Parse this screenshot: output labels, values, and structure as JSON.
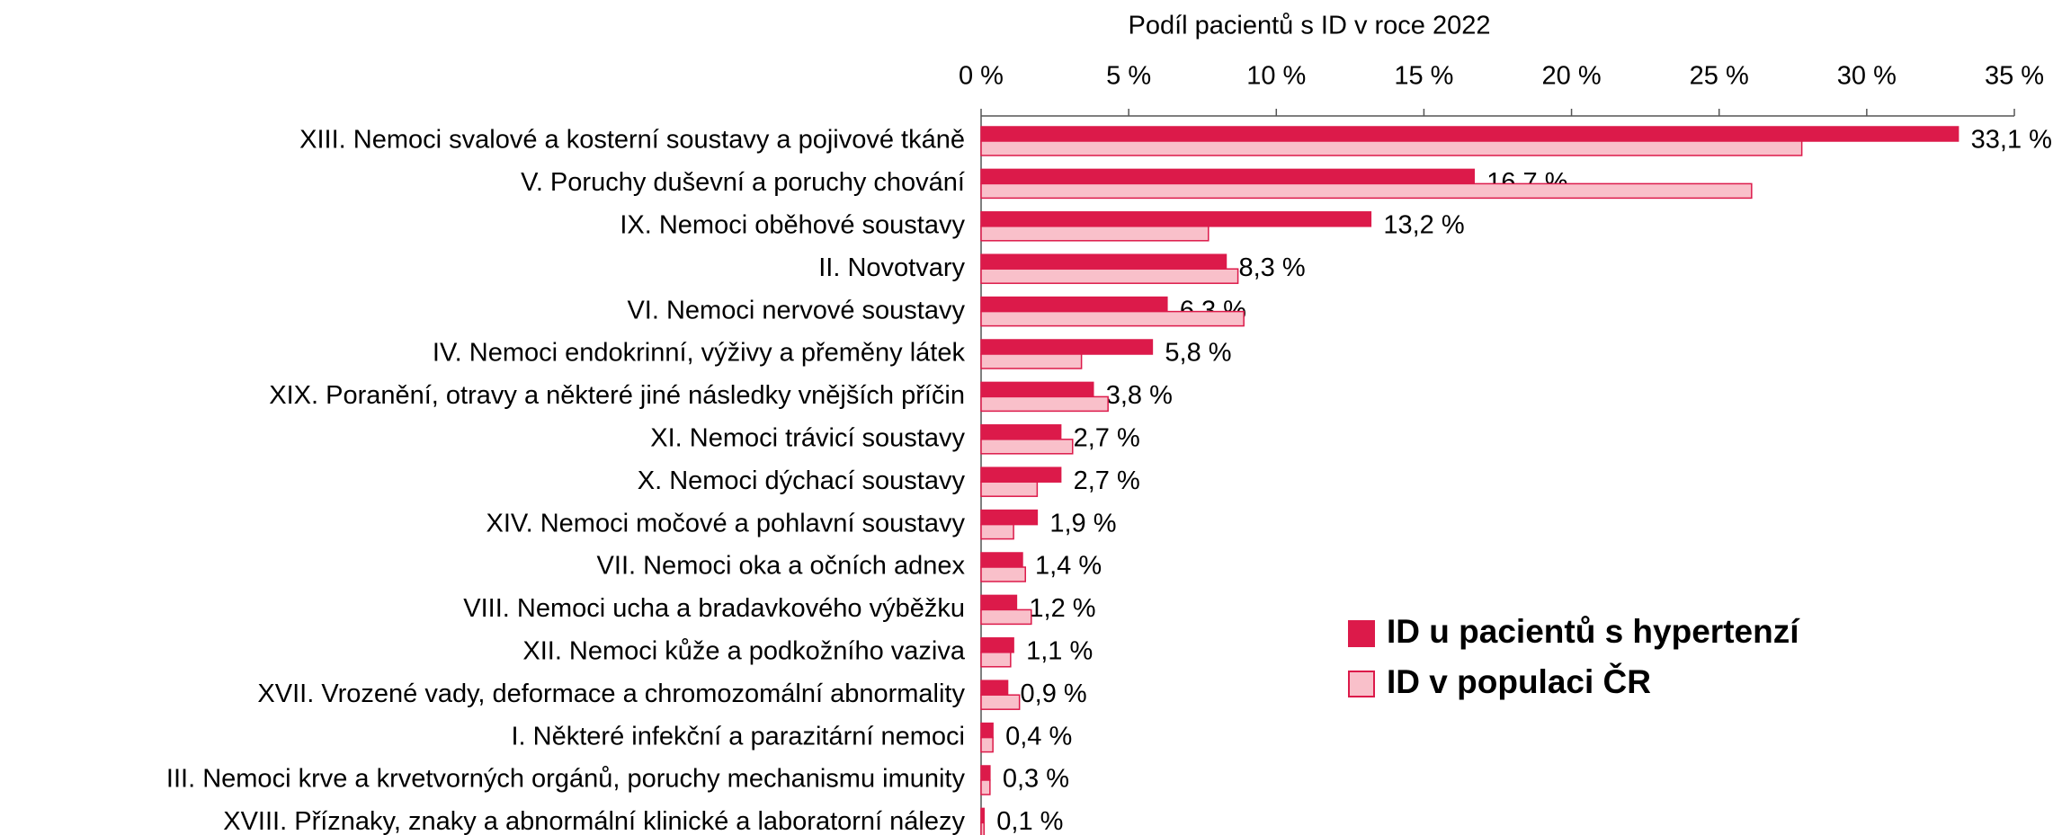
{
  "chart_data": {
    "type": "hbar",
    "x_axis_label": "Podíl pacientů s ID v roce 2022",
    "categories": [
      "XIII. Nemoci svalové a kosterní soustavy a pojivové tkáně",
      "V. Poruchy duševní a poruchy chování",
      "IX. Nemoci oběhové soustavy",
      "II. Novotvary",
      "VI. Nemoci nervové soustavy",
      "IV. Nemoci endokrinní, výživy a přeměny látek",
      "XIX. Poranění, otravy a některé jiné následky vnějších příčin",
      "XI. Nemoci trávicí soustavy",
      "X. Nemoci dýchací soustavy",
      "XIV. Nemoci močové a pohlavní soustavy",
      "VII. Nemoci oka a očních adnex",
      "VIII. Nemoci ucha a bradavkového výběžku",
      "XII. Nemoci kůže a podkožního vaziva",
      "XVII. Vrozené vady, deformace a chromozomální abnormality",
      "I. Některé infekční a parazitární nemoci",
      "III. Nemoci krve a krvetvorných orgánů, poruchy mechanismu imunity",
      "XVIII. Příznaky, znaky a abnormální klinické a laboratorní nálezy"
    ],
    "series": [
      {
        "name": "ID u pacientů s hypertenzí",
        "color": "#dc1a4a",
        "values": [
          33.1,
          16.7,
          13.2,
          8.3,
          6.3,
          5.8,
          3.8,
          2.7,
          2.7,
          1.9,
          1.4,
          1.2,
          1.1,
          0.9,
          0.4,
          0.3,
          0.1
        ],
        "value_labels": [
          "33,1 %",
          "16,7 %",
          "13,2 %",
          "8,3 %",
          "6,3 %",
          "5,8 %",
          "3,8 %",
          "2,7 %",
          "2,7 %",
          "1,9 %",
          "1,4 %",
          "1,2 %",
          "1,1 %",
          "0,9 %",
          "0,4 %",
          "0,3 %",
          "0,1 %"
        ]
      },
      {
        "name": "ID v populaci ČR",
        "color": "#f9c0ca",
        "values": [
          27.8,
          26.1,
          7.7,
          8.7,
          8.9,
          3.4,
          4.3,
          3.1,
          1.9,
          1.1,
          1.5,
          1.7,
          1.0,
          1.3,
          0.4,
          0.3,
          0.1
        ]
      }
    ],
    "xlim": [
      0,
      35
    ],
    "xticks": [
      {
        "value": 0,
        "label": "0 %"
      },
      {
        "value": 5,
        "label": "5 %"
      },
      {
        "value": 10,
        "label": "10 %"
      },
      {
        "value": 15,
        "label": "15 %"
      },
      {
        "value": 20,
        "label": "20 %"
      },
      {
        "value": 25,
        "label": "25 %"
      },
      {
        "value": 30,
        "label": "30 %"
      },
      {
        "value": 35,
        "label": "35 %"
      }
    ],
    "edge_color": "#dc1a4a",
    "legend": "lower right"
  }
}
